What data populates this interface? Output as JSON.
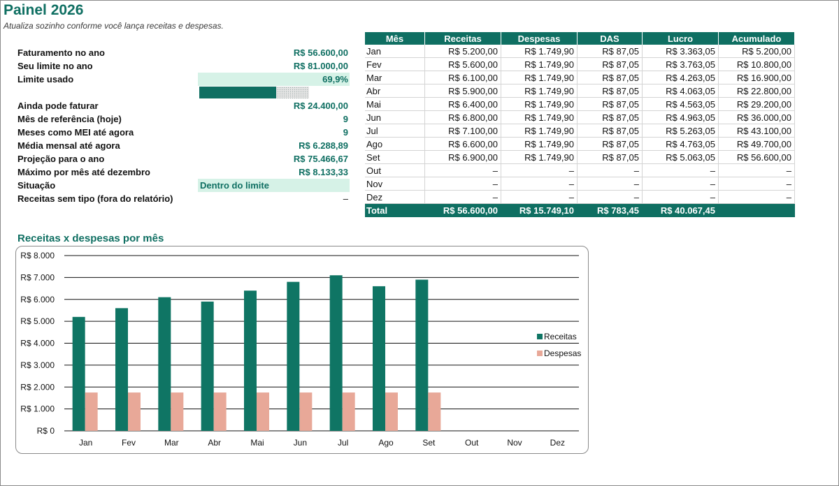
{
  "title": "Painel 2026",
  "subtitle": "Atualiza sozinho conforme você lança receitas e despesas.",
  "summary": [
    {
      "label": "Faturamento no ano",
      "value": "R$ 56.600,00"
    },
    {
      "label": "Seu limite no ano",
      "value": "R$ 81.000,00"
    },
    {
      "label": "Limite usado",
      "value": "69,9%"
    },
    {
      "label": "Ainda pode faturar",
      "value": "R$ 24.400,00"
    },
    {
      "label": "Mês de referência (hoje)",
      "value": "9"
    },
    {
      "label": "Meses como MEI até agora",
      "value": "9"
    },
    {
      "label": "Média mensal até agora",
      "value": "R$ 6.288,89"
    },
    {
      "label": "Projeção para o ano",
      "value": "R$ 75.466,67"
    },
    {
      "label": "Máximo por mês até dezembro",
      "value": "R$ 8.133,33"
    },
    {
      "label": "Situação",
      "value": "Dentro do limite"
    },
    {
      "label": "Receitas sem tipo (fora do relatório)",
      "value": "–"
    }
  ],
  "limit_used_fraction": 0.699,
  "table": {
    "headers": [
      "Mês",
      "Receitas",
      "Despesas",
      "DAS",
      "Lucro",
      "Acumulado"
    ],
    "rows": [
      [
        "Jan",
        "R$ 5.200,00",
        "R$ 1.749,90",
        "R$ 87,05",
        "R$ 3.363,05",
        "R$ 5.200,00"
      ],
      [
        "Fev",
        "R$ 5.600,00",
        "R$ 1.749,90",
        "R$ 87,05",
        "R$ 3.763,05",
        "R$ 10.800,00"
      ],
      [
        "Mar",
        "R$ 6.100,00",
        "R$ 1.749,90",
        "R$ 87,05",
        "R$ 4.263,05",
        "R$ 16.900,00"
      ],
      [
        "Abr",
        "R$ 5.900,00",
        "R$ 1.749,90",
        "R$ 87,05",
        "R$ 4.063,05",
        "R$ 22.800,00"
      ],
      [
        "Mai",
        "R$ 6.400,00",
        "R$ 1.749,90",
        "R$ 87,05",
        "R$ 4.563,05",
        "R$ 29.200,00"
      ],
      [
        "Jun",
        "R$ 6.800,00",
        "R$ 1.749,90",
        "R$ 87,05",
        "R$ 4.963,05",
        "R$ 36.000,00"
      ],
      [
        "Jul",
        "R$ 7.100,00",
        "R$ 1.749,90",
        "R$ 87,05",
        "R$ 5.263,05",
        "R$ 43.100,00"
      ],
      [
        "Ago",
        "R$ 6.600,00",
        "R$ 1.749,90",
        "R$ 87,05",
        "R$ 4.763,05",
        "R$ 49.700,00"
      ],
      [
        "Set",
        "R$ 6.900,00",
        "R$ 1.749,90",
        "R$ 87,05",
        "R$ 5.063,05",
        "R$ 56.600,00"
      ],
      [
        "Out",
        "–",
        "–",
        "–",
        "–",
        "–"
      ],
      [
        "Nov",
        "–",
        "–",
        "–",
        "–",
        "–"
      ],
      [
        "Dez",
        "–",
        "–",
        "–",
        "–",
        "–"
      ]
    ],
    "total": [
      "Total",
      "R$ 56.600,00",
      "R$ 15.749,10",
      "R$ 783,45",
      "R$ 40.067,45",
      ""
    ]
  },
  "chart_data": {
    "type": "bar",
    "title": "Receitas x despesas por mês",
    "categories": [
      "Jan",
      "Fev",
      "Mar",
      "Abr",
      "Mai",
      "Jun",
      "Jul",
      "Ago",
      "Set",
      "Out",
      "Nov",
      "Dez"
    ],
    "series": [
      {
        "name": "Receitas",
        "color": "#0f7564",
        "values": [
          5200,
          5600,
          6100,
          5900,
          6400,
          6800,
          7100,
          6600,
          6900,
          null,
          null,
          null
        ]
      },
      {
        "name": "Despesas",
        "color": "#e8a898",
        "values": [
          1749.9,
          1749.9,
          1749.9,
          1749.9,
          1749.9,
          1749.9,
          1749.9,
          1749.9,
          1749.9,
          null,
          null,
          null
        ]
      }
    ],
    "ylim": [
      0,
      8000
    ],
    "yticks": [
      0,
      1000,
      2000,
      3000,
      4000,
      5000,
      6000,
      7000,
      8000
    ],
    "ytick_labels": [
      "R$ 0",
      "R$ 1.000",
      "R$ 2.000",
      "R$ 3.000",
      "R$ 4.000",
      "R$ 5.000",
      "R$ 6.000",
      "R$ 7.000",
      "R$ 8.000"
    ],
    "grid": true,
    "legend": "right"
  },
  "colors": {
    "accent": "#0f6f62",
    "highlight": "#d6f2e7",
    "despesas": "#e8a898"
  }
}
